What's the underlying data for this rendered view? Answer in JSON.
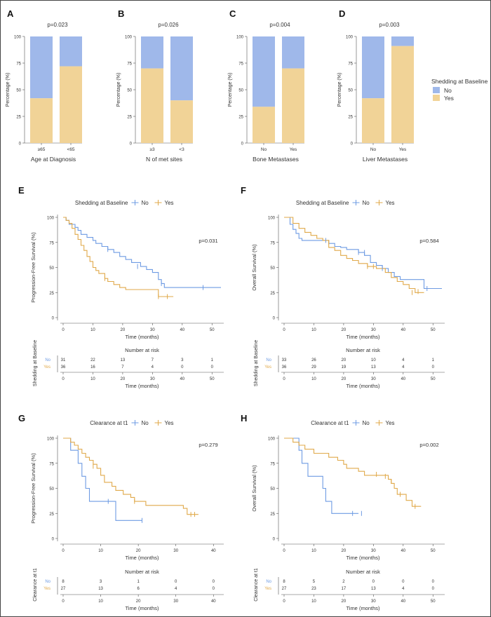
{
  "colors": {
    "no": "#9fb8ea",
    "yes": "#f1d397",
    "no_line": "#6e9be3",
    "yes_line": "#e0a94a",
    "axis": "#555555",
    "text": "#333333"
  },
  "bar_panels": [
    {
      "letter": "A",
      "pvalue": "p=0.023",
      "xlabel": "Age at Diagnosis",
      "ylabel": "Percentage (%)",
      "categories": [
        "≥65",
        "<65"
      ],
      "yes_pct": [
        42,
        72
      ]
    },
    {
      "letter": "B",
      "pvalue": "p=0.026",
      "xlabel": "N of met sites",
      "ylabel": "Percentage (%)",
      "categories": [
        "≥3",
        "<3"
      ],
      "yes_pct": [
        70,
        40
      ]
    },
    {
      "letter": "C",
      "pvalue": "p=0.004",
      "xlabel": "Bone Metastases",
      "ylabel": "Percentage (%)",
      "categories": [
        "No",
        "Yes"
      ],
      "yes_pct": [
        34,
        70
      ]
    },
    {
      "letter": "D",
      "pvalue": "p=0.003",
      "xlabel": "Liver Metastases",
      "ylabel": "Percentage (%)",
      "categories": [
        "No",
        "Yes"
      ],
      "yes_pct": [
        42,
        91
      ]
    }
  ],
  "bar_legend": {
    "title": "Shedding at Baseline",
    "no": "No",
    "yes": "Yes"
  },
  "km_panels": [
    {
      "letter": "E",
      "legend_title": "Shedding at Baseline",
      "no": "No",
      "yes": "Yes",
      "pvalue": "p=0.031",
      "ylabel": "Progression-Free Survival (%)",
      "xlabel": "Time (months)",
      "xmax": 53,
      "xticks": [
        0,
        10,
        20,
        30,
        40,
        50
      ],
      "yticks": [
        0,
        25,
        50,
        75,
        100
      ],
      "risk_title": "Number at risk",
      "risk_ylabel": "Shedding at Baseline",
      "risk_no": [
        31,
        22,
        13,
        7,
        3,
        1
      ],
      "risk_yes": [
        36,
        16,
        7,
        4,
        0,
        0
      ],
      "curve_no": [
        [
          0,
          100
        ],
        [
          1,
          97
        ],
        [
          2,
          93
        ],
        [
          4,
          90
        ],
        [
          5,
          87
        ],
        [
          6,
          83
        ],
        [
          8,
          80
        ],
        [
          10,
          77
        ],
        [
          11,
          74
        ],
        [
          13,
          71
        ],
        [
          15,
          68
        ],
        [
          17,
          65
        ],
        [
          19,
          61
        ],
        [
          21,
          58
        ],
        [
          23,
          55
        ],
        [
          26,
          51
        ],
        [
          28,
          48
        ],
        [
          30,
          45
        ],
        [
          32,
          38
        ],
        [
          33,
          34
        ],
        [
          34,
          30
        ],
        [
          53,
          30
        ]
      ],
      "curve_yes": [
        [
          0,
          100
        ],
        [
          1,
          97
        ],
        [
          2,
          94
        ],
        [
          3,
          89
        ],
        [
          4,
          83
        ],
        [
          5,
          78
        ],
        [
          6,
          72
        ],
        [
          7,
          67
        ],
        [
          8,
          61
        ],
        [
          9,
          56
        ],
        [
          10,
          50
        ],
        [
          11,
          47
        ],
        [
          12,
          44
        ],
        [
          14,
          39
        ],
        [
          15,
          36
        ],
        [
          17,
          33
        ],
        [
          19,
          30
        ],
        [
          21,
          28
        ],
        [
          32,
          21
        ],
        [
          37,
          21
        ]
      ],
      "censor_no": [
        [
          15,
          68
        ],
        [
          25,
          51
        ],
        [
          33,
          34
        ],
        [
          47,
          30
        ]
      ],
      "censor_yes": [
        [
          14,
          39
        ],
        [
          32,
          21
        ],
        [
          35,
          21
        ]
      ]
    },
    {
      "letter": "F",
      "legend_title": "Shedding at Baseline",
      "no": "No",
      "yes": "Yes",
      "pvalue": "p=0.584",
      "ylabel": "Overall Survival (%)",
      "xlabel": "Time (months)",
      "xmax": 53,
      "xticks": [
        0,
        10,
        20,
        30,
        40,
        50
      ],
      "yticks": [
        0,
        25,
        50,
        75,
        100
      ],
      "risk_title": "Number at risk",
      "risk_ylabel": "Shedding at Baseline",
      "risk_no": [
        33,
        26,
        20,
        10,
        4,
        1
      ],
      "risk_yes": [
        36,
        29,
        19,
        13,
        4,
        0
      ],
      "curve_no": [
        [
          0,
          100
        ],
        [
          2,
          93
        ],
        [
          3,
          88
        ],
        [
          4,
          84
        ],
        [
          5,
          79
        ],
        [
          6,
          77
        ],
        [
          14,
          77
        ],
        [
          15,
          74
        ],
        [
          17,
          71
        ],
        [
          19,
          70
        ],
        [
          21,
          68
        ],
        [
          23,
          68
        ],
        [
          25,
          65
        ],
        [
          27,
          62
        ],
        [
          29,
          55
        ],
        [
          31,
          52
        ],
        [
          33,
          49
        ],
        [
          35,
          45
        ],
        [
          37,
          41
        ],
        [
          39,
          38
        ],
        [
          46,
          38
        ],
        [
          47,
          29
        ],
        [
          53,
          29
        ]
      ],
      "curve_yes": [
        [
          0,
          100
        ],
        [
          3,
          94
        ],
        [
          5,
          89
        ],
        [
          7,
          85
        ],
        [
          9,
          82
        ],
        [
          11,
          79
        ],
        [
          13,
          77
        ],
        [
          15,
          70
        ],
        [
          17,
          67
        ],
        [
          19,
          62
        ],
        [
          21,
          59
        ],
        [
          23,
          57
        ],
        [
          25,
          54
        ],
        [
          28,
          51
        ],
        [
          31,
          49
        ],
        [
          34,
          45
        ],
        [
          36,
          40
        ],
        [
          38,
          36
        ],
        [
          40,
          33
        ],
        [
          42,
          29
        ],
        [
          44,
          25
        ],
        [
          47,
          25
        ]
      ],
      "censor_no": [
        [
          14,
          77
        ],
        [
          25,
          65
        ],
        [
          27,
          65
        ],
        [
          33,
          49
        ],
        [
          48,
          29
        ]
      ],
      "censor_yes": [
        [
          15,
          75
        ],
        [
          28,
          51
        ],
        [
          30,
          51
        ],
        [
          43,
          25
        ],
        [
          45,
          26
        ]
      ]
    },
    {
      "letter": "G",
      "legend_title": "Clearance at t1",
      "no": "No",
      "yes": "Yes",
      "pvalue": "p=0.279",
      "ylabel": "Progression-Free Survival (%)",
      "xlabel": "Time (months)",
      "xmax": 42,
      "xticks": [
        0,
        10,
        20,
        30,
        40
      ],
      "yticks": [
        0,
        25,
        50,
        75,
        100
      ],
      "risk_title": "Number at risk",
      "risk_ylabel": "Clearance at t1",
      "risk_no": [
        8,
        3,
        1,
        0,
        0
      ],
      "risk_yes": [
        27,
        13,
        6,
        4,
        0
      ],
      "curve_no": [
        [
          0,
          100
        ],
        [
          2,
          88
        ],
        [
          4,
          75
        ],
        [
          5,
          62
        ],
        [
          6,
          50
        ],
        [
          7,
          37
        ],
        [
          13,
          37
        ],
        [
          14,
          18
        ],
        [
          21,
          18
        ]
      ],
      "curve_yes": [
        [
          0,
          100
        ],
        [
          2,
          96
        ],
        [
          3,
          93
        ],
        [
          4,
          89
        ],
        [
          5,
          85
        ],
        [
          6,
          81
        ],
        [
          7,
          78
        ],
        [
          8,
          74
        ],
        [
          9,
          70
        ],
        [
          10,
          63
        ],
        [
          11,
          56
        ],
        [
          13,
          52
        ],
        [
          14,
          48
        ],
        [
          16,
          44
        ],
        [
          18,
          41
        ],
        [
          19,
          37
        ],
        [
          22,
          33
        ],
        [
          32,
          30
        ],
        [
          33,
          24
        ],
        [
          36,
          24
        ]
      ],
      "censor_no": [
        [
          12,
          37
        ],
        [
          21,
          18
        ]
      ],
      "censor_yes": [
        [
          8,
          72
        ],
        [
          19,
          37
        ],
        [
          34,
          24
        ],
        [
          35,
          24
        ]
      ]
    },
    {
      "letter": "H",
      "legend_title": "Clearance at t1",
      "no": "No",
      "yes": "Yes",
      "pvalue": "p=0.002",
      "ylabel": "Overall Survival (%)",
      "xlabel": "Time (months)",
      "xmax": 53,
      "xticks": [
        0,
        10,
        20,
        30,
        40,
        50
      ],
      "yticks": [
        0,
        25,
        50,
        75,
        100
      ],
      "risk_title": "Number at risk",
      "risk_ylabel": "Clearance at t1",
      "risk_no": [
        8,
        5,
        2,
        0,
        0,
        0
      ],
      "risk_yes": [
        27,
        23,
        17,
        13,
        4,
        0
      ],
      "curve_no": [
        [
          0,
          100
        ],
        [
          5,
          88
        ],
        [
          6,
          75
        ],
        [
          8,
          62
        ],
        [
          13,
          50
        ],
        [
          14,
          37
        ],
        [
          16,
          25
        ],
        [
          25,
          25
        ]
      ],
      "curve_yes": [
        [
          0,
          100
        ],
        [
          3,
          96
        ],
        [
          5,
          93
        ],
        [
          7,
          89
        ],
        [
          10,
          85
        ],
        [
          15,
          81
        ],
        [
          18,
          78
        ],
        [
          20,
          74
        ],
        [
          21,
          70
        ],
        [
          25,
          67
        ],
        [
          27,
          63
        ],
        [
          33,
          63
        ],
        [
          35,
          59
        ],
        [
          36,
          55
        ],
        [
          37,
          50
        ],
        [
          38,
          44
        ],
        [
          41,
          38
        ],
        [
          43,
          32
        ],
        [
          46,
          32
        ]
      ],
      "censor_no": [
        [
          23,
          25
        ],
        [
          26,
          25
        ]
      ],
      "censor_yes": [
        [
          31,
          64
        ],
        [
          34,
          62
        ],
        [
          36,
          57
        ],
        [
          39,
          44
        ],
        [
          44,
          32
        ]
      ]
    }
  ],
  "chart_data": [
    {
      "type": "bar",
      "title": "A",
      "categories": [
        "≥65",
        "<65"
      ],
      "xlabel": "Age at Diagnosis",
      "ylabel": "Percentage (%)",
      "ylim": [
        0,
        100
      ],
      "series": [
        {
          "name": "No",
          "values": [
            58,
            28
          ]
        },
        {
          "name": "Yes",
          "values": [
            42,
            72
          ]
        }
      ],
      "annotation": "p=0.023"
    },
    {
      "type": "bar",
      "title": "B",
      "categories": [
        "≥3",
        "<3"
      ],
      "xlabel": "N of met sites",
      "ylabel": "Percentage (%)",
      "ylim": [
        0,
        100
      ],
      "series": [
        {
          "name": "No",
          "values": [
            30,
            60
          ]
        },
        {
          "name": "Yes",
          "values": [
            70,
            40
          ]
        }
      ],
      "annotation": "p=0.026"
    },
    {
      "type": "bar",
      "title": "C",
      "categories": [
        "No",
        "Yes"
      ],
      "xlabel": "Bone Metastases",
      "ylabel": "Percentage (%)",
      "ylim": [
        0,
        100
      ],
      "series": [
        {
          "name": "No",
          "values": [
            66,
            30
          ]
        },
        {
          "name": "Yes",
          "values": [
            34,
            70
          ]
        }
      ],
      "annotation": "p=0.004"
    },
    {
      "type": "bar",
      "title": "D",
      "categories": [
        "No",
        "Yes"
      ],
      "xlabel": "Liver Metastases",
      "ylabel": "Percentage (%)",
      "ylim": [
        0,
        100
      ],
      "series": [
        {
          "name": "No",
          "values": [
            58,
            9
          ]
        },
        {
          "name": "Yes",
          "values": [
            42,
            91
          ]
        }
      ],
      "annotation": "p=0.003"
    },
    {
      "type": "line",
      "title": "E",
      "xlabel": "Time (months)",
      "ylabel": "Progression-Free Survival (%)",
      "ylim": [
        0,
        100
      ],
      "annotation": "p=0.031",
      "series_ref": "km_panels.0"
    },
    {
      "type": "line",
      "title": "F",
      "xlabel": "Time (months)",
      "ylabel": "Overall Survival (%)",
      "ylim": [
        0,
        100
      ],
      "annotation": "p=0.584",
      "series_ref": "km_panels.1"
    },
    {
      "type": "line",
      "title": "G",
      "xlabel": "Time (months)",
      "ylabel": "Progression-Free Survival (%)",
      "ylim": [
        0,
        100
      ],
      "annotation": "p=0.279",
      "series_ref": "km_panels.2"
    },
    {
      "type": "line",
      "title": "H",
      "xlabel": "Time (months)",
      "ylabel": "Overall Survival (%)",
      "ylim": [
        0,
        100
      ],
      "annotation": "p=0.002",
      "series_ref": "km_panels.3"
    }
  ]
}
